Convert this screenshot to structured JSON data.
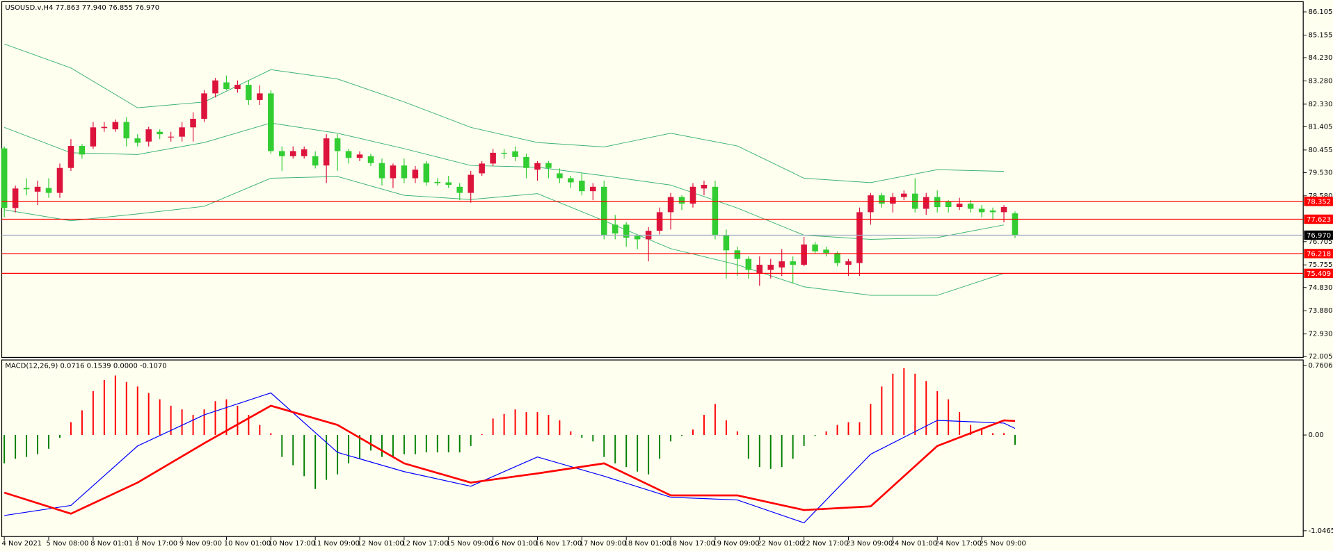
{
  "chart_data": [
    {
      "type": "candlestick",
      "title": "USOUSD.v,H4 77.863 77.940 76.855 76.970",
      "categories": [
        "4 Nov 2021",
        null,
        null,
        null,
        "5 Nov 08:00",
        null,
        null,
        null,
        "8 Nov 01:01",
        null,
        null,
        null,
        "8 Nov 17:00",
        null,
        null,
        null,
        "9 Nov 09:00",
        null,
        null,
        null,
        "10 Nov 01:00",
        null,
        null,
        null,
        "10 Nov 17:00",
        null,
        null,
        null,
        "11 Nov 09:00",
        null,
        null,
        null,
        "12 Nov 01:00",
        null,
        null,
        null,
        "12 Nov 17:00",
        null,
        null,
        null,
        "15 Nov 09:00",
        null,
        null,
        null,
        "16 Nov 01:00",
        null,
        null,
        null,
        "16 Nov 17:00",
        null,
        null,
        null,
        "17 Nov 09:00",
        null,
        null,
        null,
        "18 Nov 01:00",
        null,
        null,
        null,
        "18 Nov 17:00",
        null,
        null,
        null,
        "19 Nov 09:00",
        null,
        null,
        null,
        "22 Nov 01:00",
        null,
        null,
        null,
        "22 Nov 17:00",
        null,
        null,
        null,
        "23 Nov 09:00",
        null,
        null,
        null,
        "24 Nov 01:00",
        null,
        null,
        null,
        "24 Nov 17:00",
        null,
        null,
        null,
        "25 Nov 09:00",
        null,
        null,
        null
      ],
      "open": [
        80.52,
        78.08,
        78.9,
        78.75,
        78.9,
        78.7,
        79.72,
        80.62,
        80.6,
        81.35,
        81.3,
        81.6,
        80.93,
        80.8,
        81.2,
        81.0,
        81.0,
        81.38,
        81.73,
        82.77,
        83.22,
        82.95,
        83.12,
        82.5,
        82.77,
        80.41,
        80.2,
        80.2,
        80.2,
        79.82,
        80.93,
        80.41,
        80.13,
        80.2,
        79.92,
        79.3,
        79.82,
        79.3,
        79.9,
        79.15,
        79.13,
        78.95,
        78.7,
        79.5,
        79.9,
        80.34,
        80.4,
        80.17,
        79.65,
        79.92,
        79.5,
        79.3,
        79.2,
        78.77,
        78.95,
        77.4,
        77.4,
        76.94,
        76.8,
        77.15,
        77.91,
        78.53,
        78.26,
        78.88,
        78.95,
        76.97,
        76.35,
        76.0,
        75.41,
        75.55,
        75.65,
        75.9,
        75.76,
        76.59,
        76.38,
        76.24,
        75.76,
        75.83,
        77.91,
        78.6,
        78.26,
        78.53,
        78.67,
        78.05,
        78.53,
        78.33,
        78.12,
        78.26,
        78.05,
        77.98,
        77.91,
        77.863
      ],
      "high": [
        80.6,
        79.0,
        79.3,
        79.2,
        79.3,
        79.9,
        80.9,
        80.7,
        81.6,
        81.6,
        81.7,
        81.8,
        81.1,
        81.4,
        81.3,
        81.2,
        81.6,
        82.0,
        82.9,
        83.4,
        83.5,
        83.3,
        83.3,
        83.1,
        82.9,
        80.6,
        80.6,
        80.6,
        80.4,
        81.1,
        81.1,
        80.5,
        80.4,
        80.3,
        80.1,
        79.9,
        80.1,
        79.8,
        80.0,
        79.3,
        79.4,
        79.1,
        79.6,
        80.0,
        80.5,
        80.5,
        80.6,
        80.3,
        80.0,
        80.0,
        79.7,
        79.4,
        79.5,
        79.1,
        79.2,
        77.8,
        77.5,
        77.0,
        77.3,
        78.1,
        78.7,
        78.6,
        79.1,
        79.2,
        79.2,
        77.2,
        76.5,
        76.1,
        76.1,
        76.0,
        76.4,
        76.1,
        76.9,
        76.7,
        76.5,
        76.3,
        76.0,
        78.1,
        78.7,
        78.7,
        78.7,
        78.8,
        79.3,
        78.7,
        78.8,
        78.4,
        78.5,
        78.4,
        78.2,
        78.1,
        78.2,
        77.94
      ],
      "low": [
        77.7,
        77.9,
        78.6,
        78.2,
        78.5,
        78.5,
        79.6,
        80.1,
        80.5,
        81.2,
        81.2,
        80.6,
        80.6,
        80.6,
        80.9,
        80.8,
        80.8,
        80.8,
        81.6,
        82.6,
        82.9,
        82.8,
        82.3,
        82.3,
        80.3,
        79.6,
        80.1,
        80.1,
        79.7,
        79.1,
        79.6,
        79.9,
        80.0,
        79.8,
        79.0,
        78.9,
        79.1,
        79.1,
        79.0,
        79.0,
        78.9,
        78.4,
        78.3,
        79.4,
        79.8,
        80.1,
        80.0,
        79.3,
        79.2,
        79.3,
        79.1,
        78.9,
        78.6,
        78.4,
        76.8,
        76.8,
        76.5,
        76.4,
        75.9,
        77.0,
        77.2,
        78.0,
        78.1,
        78.6,
        76.8,
        75.2,
        75.3,
        75.2,
        74.9,
        75.2,
        75.3,
        75.0,
        75.7,
        76.2,
        76.1,
        75.7,
        75.3,
        75.3,
        77.4,
        78.1,
        77.9,
        78.4,
        77.9,
        77.8,
        77.9,
        77.9,
        78.0,
        77.9,
        77.7,
        77.6,
        77.5,
        76.855
      ],
      "close": [
        78.08,
        78.88,
        78.85,
        78.95,
        78.7,
        79.72,
        80.62,
        80.27,
        81.38,
        81.4,
        81.6,
        80.93,
        80.75,
        81.3,
        81.1,
        81.0,
        81.38,
        81.73,
        82.77,
        83.3,
        82.95,
        83.12,
        82.5,
        82.77,
        80.41,
        80.2,
        80.41,
        80.48,
        79.82,
        80.93,
        80.41,
        80.13,
        80.27,
        79.92,
        79.3,
        79.82,
        79.3,
        79.65,
        79.13,
        79.1,
        79.03,
        78.7,
        79.44,
        79.9,
        80.34,
        80.3,
        80.17,
        79.72,
        79.92,
        79.72,
        79.3,
        79.13,
        78.77,
        78.95,
        76.97,
        77.04,
        76.87,
        76.8,
        77.15,
        77.91,
        78.53,
        78.26,
        78.95,
        79.03,
        76.97,
        76.35,
        76.0,
        75.55,
        75.76,
        75.76,
        75.9,
        75.76,
        76.59,
        76.31,
        76.24,
        75.83,
        75.9,
        77.91,
        78.6,
        78.26,
        78.53,
        78.67,
        78.05,
        78.53,
        78.12,
        78.12,
        78.26,
        78.05,
        77.91,
        77.91,
        78.12,
        76.97
      ],
      "up_color": "#dc143c",
      "down_color": "#32cd32",
      "bands": {
        "x": [
          0,
          6,
          12,
          18,
          24,
          30,
          36,
          42,
          48,
          54,
          60,
          66,
          72,
          78,
          84,
          90
        ],
        "color": "#3cb371",
        "series": [
          {
            "values": [
              84.79,
              83.81,
              82.18,
              82.42,
              83.74,
              83.36,
              82.42,
              81.38,
              80.76,
              80.58,
              81.14,
              80.62,
              79.3,
              79.12,
              79.65,
              79.58
            ]
          },
          {
            "values": [
              81.38,
              80.34,
              80.27,
              80.76,
              81.56,
              81.14,
              80.51,
              79.82,
              79.75,
              79.4,
              79.02,
              78.08,
              76.97,
              76.8,
              76.87,
              77.39
            ]
          },
          {
            "values": [
              78.01,
              77.56,
              77.84,
              78.15,
              79.3,
              79.37,
              78.6,
              78.43,
              78.67,
              77.56,
              76.42,
              75.76,
              74.86,
              74.51,
              74.51,
              75.41
            ]
          }
        ]
      },
      "hlines": [
        {
          "value": 78.352,
          "color": "#ff0000"
        },
        {
          "value": 77.623,
          "color": "#ff0000"
        },
        {
          "value": 76.218,
          "color": "#ff0000"
        },
        {
          "value": 75.409,
          "color": "#ff0000"
        },
        {
          "value": 76.97,
          "label": "76.970",
          "color": "#9aa8c0",
          "label_fill": "#000000"
        }
      ],
      "ylim": [
        71.97,
        86.52
      ],
      "yticks": [
        86.105,
        85.155,
        {
          "value": 84.23,
          "label": "84.230"
        },
        {
          "value": 83.28,
          "label": "83.280"
        },
        {
          "value": 82.33,
          "label": "82.330"
        },
        81.405,
        80.455,
        {
          "value": 79.53,
          "label": "79.530"
        },
        {
          "value": 78.58,
          "label": "78.580"
        },
        76.705,
        75.755,
        {
          "value": 74.83,
          "label": "74.830"
        },
        {
          "value": 73.88,
          "label": "73.880"
        },
        {
          "value": 72.93,
          "label": "72.930"
        },
        72.005
      ]
    },
    {
      "type": "macd",
      "title": "MACD(12,26,9) 0.0716 0.1539 0.0000 -0.1070",
      "values": [
        -0.31,
        -0.26,
        -0.24,
        -0.21,
        -0.15,
        -0.03,
        0.14,
        0.27,
        0.48,
        0.6,
        0.65,
        0.58,
        0.53,
        0.46,
        0.39,
        0.32,
        0.28,
        0.22,
        0.28,
        0.37,
        0.39,
        0.32,
        0.22,
        0.11,
        0.02,
        -0.24,
        -0.33,
        -0.45,
        -0.59,
        -0.49,
        -0.43,
        -0.31,
        -0.26,
        -0.17,
        -0.24,
        -0.24,
        -0.21,
        -0.21,
        -0.19,
        -0.19,
        -0.19,
        -0.19,
        -0.12,
        0.01,
        0.18,
        0.23,
        0.28,
        0.25,
        0.25,
        0.22,
        0.16,
        0.04,
        -0.03,
        -0.07,
        -0.24,
        -0.31,
        -0.35,
        -0.4,
        -0.43,
        -0.26,
        -0.07,
        -0.01,
        0.06,
        0.22,
        0.34,
        0.16,
        0.04,
        -0.26,
        -0.35,
        -0.37,
        -0.35,
        -0.26,
        -0.12,
        -0.01,
        0.04,
        0.11,
        0.14,
        0.14,
        0.34,
        0.53,
        0.67,
        0.73,
        0.67,
        0.59,
        0.48,
        0.39,
        0.25,
        0.11,
        0.06,
        0.02,
        0.02,
        -0.107
      ],
      "pos_color": "#ff0000",
      "neg_color": "#008000",
      "lines": {
        "x": [
          0,
          6,
          12,
          18,
          24,
          30,
          36,
          42,
          48,
          54,
          60,
          66,
          72,
          78,
          84,
          90,
          91
        ],
        "series": [
          {
            "color": "#0000ff",
            "width": 1,
            "values": [
              -0.88,
              -0.77,
              -0.12,
              0.22,
              0.46,
              -0.19,
              -0.4,
              -0.56,
              -0.24,
              -0.45,
              -0.68,
              -0.71,
              -0.96,
              -0.21,
              0.16,
              0.13,
              0.0716
            ]
          },
          {
            "color": "#ff0000",
            "width": 2.2,
            "values": [
              -0.63,
              -0.86,
              -0.52,
              -0.09,
              0.32,
              0.11,
              -0.31,
              -0.52,
              -0.42,
              -0.31,
              -0.66,
              -0.66,
              -0.82,
              -0.78,
              -0.12,
              0.16,
              0.1539
            ]
          }
        ]
      },
      "ylim": [
        -1.11,
        0.82
      ],
      "yticks": [
        0.7606,
        {
          "value": 0,
          "label": "0.00"
        },
        -1.0465
      ]
    }
  ]
}
